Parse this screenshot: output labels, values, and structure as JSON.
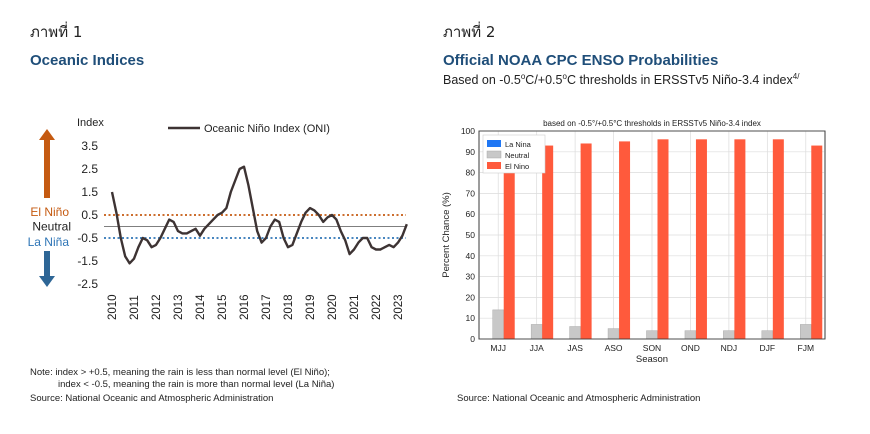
{
  "left": {
    "fig_label": "ภาพที่ 1",
    "title": "Oceanic Indices",
    "note_line1": "Note:   index >  +0.5, meaning the rain is less than normal level (El Niño);",
    "note_line2": "index < -0.5, meaning the rain is more than normal level (La Niña)",
    "source": "Source: National Oceanic and Atmospheric Administration",
    "el_nino_label": "El Niño",
    "neutral_label": "Neutral",
    "la_nina_label": "La Niña",
    "colors": {
      "line": "#3d3333",
      "el_nino": "#c55a11",
      "la_nina": "#2e75b6",
      "arrow_up": "#c55a11",
      "arrow_down": "#2e6696"
    }
  },
  "right": {
    "fig_label": "ภาพที่ 2",
    "title": "Official NOAA CPC ENSO Probabilities",
    "subtitle_a": "Based on -0.5",
    "subtitle_b": "C/+0.5",
    "subtitle_c": "C thresholds in ERSSTv5 Niño-3.4 index",
    "subtitle_sup_o": "o",
    "subtitle_sup_ref": "4/",
    "source": "Source: National Oceanic and Atmospheric Administration",
    "colors": {
      "la_nina": "#1f77f4",
      "neutral": "#c8c8c8",
      "el_nino": "#ff5a3c"
    }
  },
  "chart_data": [
    {
      "type": "line",
      "ylabel": "Index",
      "ylim": [
        -2.5,
        3.5
      ],
      "yticks": [
        "3.5",
        "2.5",
        "1.5",
        "0.5",
        "-0.5",
        "-1.5",
        "-2.5"
      ],
      "ytick_values": [
        3.5,
        2.5,
        1.5,
        0.5,
        -0.5,
        -1.5,
        -2.5
      ],
      "xticks": [
        "2010",
        "2011",
        "2012",
        "2013",
        "2014",
        "2015",
        "2016",
        "2017",
        "2018",
        "2019",
        "2020",
        "2021",
        "2022",
        "2023"
      ],
      "thresholds": [
        0.5,
        -0.5
      ],
      "grid": false,
      "legend": "top",
      "series": [
        {
          "name": "Oceanic Niño Index (ONI)",
          "x": [
            2010.0,
            2010.2,
            2010.4,
            2010.6,
            2010.8,
            2011.0,
            2011.2,
            2011.4,
            2011.6,
            2011.8,
            2012.0,
            2012.2,
            2012.4,
            2012.6,
            2012.8,
            2013.0,
            2013.2,
            2013.4,
            2013.6,
            2013.8,
            2014.0,
            2014.2,
            2014.4,
            2014.6,
            2014.8,
            2015.0,
            2015.2,
            2015.4,
            2015.6,
            2015.8,
            2016.0,
            2016.2,
            2016.4,
            2016.6,
            2016.8,
            2017.0,
            2017.2,
            2017.4,
            2017.6,
            2017.8,
            2018.0,
            2018.2,
            2018.4,
            2018.6,
            2018.8,
            2019.0,
            2019.2,
            2019.4,
            2019.6,
            2019.8,
            2020.0,
            2020.2,
            2020.4,
            2020.6,
            2020.8,
            2021.0,
            2021.2,
            2021.4,
            2021.6,
            2021.8,
            2022.0,
            2022.2,
            2022.4,
            2022.6,
            2022.8,
            2023.0,
            2023.2,
            2023.4
          ],
          "values": [
            1.5,
            0.6,
            -0.5,
            -1.3,
            -1.6,
            -1.4,
            -0.9,
            -0.5,
            -0.6,
            -0.9,
            -0.8,
            -0.5,
            -0.1,
            0.3,
            0.2,
            -0.2,
            -0.3,
            -0.3,
            -0.2,
            -0.1,
            -0.4,
            -0.1,
            0.1,
            0.3,
            0.5,
            0.6,
            0.8,
            1.5,
            2.0,
            2.5,
            2.6,
            1.8,
            0.8,
            -0.2,
            -0.7,
            -0.5,
            0.0,
            0.3,
            0.2,
            -0.5,
            -0.9,
            -0.8,
            -0.3,
            0.2,
            0.6,
            0.8,
            0.7,
            0.5,
            0.2,
            0.4,
            0.5,
            0.3,
            -0.2,
            -0.6,
            -1.2,
            -1.0,
            -0.7,
            -0.5,
            -0.5,
            -0.9,
            -1.0,
            -1.0,
            -0.9,
            -0.8,
            -0.9,
            -0.7,
            -0.4,
            0.1
          ]
        }
      ]
    },
    {
      "type": "bar",
      "title": "based on -0.5°/+0.5°C thresholds in ERSSTv5 Niño-3.4 index",
      "xlabel": "Season",
      "ylabel": "Percent Chance (%)",
      "ylim": [
        0,
        100
      ],
      "yticks": [
        0,
        10,
        20,
        30,
        40,
        50,
        60,
        70,
        80,
        90,
        100
      ],
      "legend": "top-left",
      "grid": true,
      "categories": [
        "MJJ",
        "JJA",
        "JAS",
        "ASO",
        "SON",
        "OND",
        "NDJ",
        "DJF",
        "FJM"
      ],
      "series": [
        {
          "name": "La Nina",
          "values": [
            0,
            0,
            0,
            0,
            0,
            0,
            0,
            0,
            0
          ]
        },
        {
          "name": "Neutral",
          "values": [
            14,
            7,
            6,
            5,
            4,
            4,
            4,
            4,
            7
          ]
        },
        {
          "name": "El Nino",
          "values": [
            86,
            93,
            94,
            95,
            96,
            96,
            96,
            96,
            93
          ]
        }
      ]
    }
  ]
}
